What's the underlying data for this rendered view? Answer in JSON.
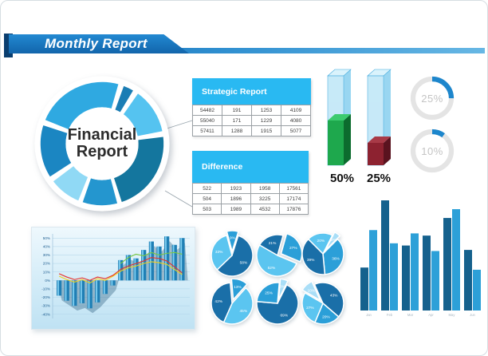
{
  "header": {
    "title": "Monthly Report"
  },
  "tables": [
    {
      "title": "Strategic Report",
      "rows": [
        [
          "54482",
          "191",
          "1253",
          "4109"
        ],
        [
          "55040",
          "171",
          "1229",
          "4080"
        ],
        [
          "57411",
          "1288",
          "1915",
          "5077"
        ]
      ]
    },
    {
      "title": "Difference",
      "rows": [
        [
          "522",
          "1923",
          "1958",
          "17561"
        ],
        [
          "504",
          "1896",
          "3225",
          "17174"
        ],
        [
          "503",
          "1989",
          "4532",
          "17876"
        ]
      ]
    }
  ],
  "chart_data": [
    {
      "id": "donut",
      "type": "pie",
      "center_lines": [
        "Financial",
        "Report"
      ],
      "slices": [
        {
          "start": 292,
          "end": 16,
          "color": "#2fa9e1"
        },
        {
          "start": 20,
          "end": 31,
          "color": "#1b7db4"
        },
        {
          "start": 35,
          "end": 79,
          "color": "#55c3f0"
        },
        {
          "start": 83,
          "end": 162,
          "color": "#14769e"
        },
        {
          "start": 165,
          "end": 199,
          "color": "#2496cf"
        },
        {
          "start": 202,
          "end": 233,
          "color": "#90d9f5"
        },
        {
          "start": 237,
          "end": 288,
          "color": "#1b86c2"
        }
      ]
    },
    {
      "id": "columns3d",
      "type": "bar",
      "labels": [
        "50%",
        "25%"
      ],
      "values": [
        50,
        25
      ],
      "colors": [
        {
          "front": "#1ea84d",
          "side": "#0c6c2e",
          "top": "#3bcb6e"
        },
        {
          "front": "#8d2230",
          "side": "#5a131f",
          "top": "#a83a47"
        }
      ],
      "glass": {
        "front": "#b8e4f7",
        "side": "#8ed2ef",
        "top": "#daf3fc",
        "stroke": "#3fa9dd"
      }
    },
    {
      "id": "rings",
      "type": "progress",
      "labels": [
        "25%",
        "10%"
      ],
      "values": [
        25,
        10
      ],
      "arc_color": "#1d86cc",
      "track_color": "#e4e4e4",
      "text_color": "#c4c4c4"
    },
    {
      "id": "combo",
      "type": "bar-line-combo",
      "x": [
        1,
        2,
        3,
        4,
        5,
        6,
        7,
        8,
        9,
        10,
        11,
        12,
        13,
        14,
        15,
        16,
        17
      ],
      "bars": [
        -18,
        -24,
        -30,
        -27,
        -33,
        -26,
        -16,
        -6,
        24,
        30,
        26,
        36,
        46,
        40,
        52,
        42,
        50
      ],
      "bar_color": "#1f7fb5",
      "bar_highlight": "#7fd0f2",
      "lines": [
        {
          "name": "yellow-line",
          "color": "#f2cf1d",
          "values": [
            5,
            1,
            -2,
            1,
            -3,
            2,
            0,
            5,
            11,
            15,
            17,
            20,
            22,
            21,
            19,
            13,
            7
          ]
        },
        {
          "name": "red-line",
          "color": "#e63129",
          "values": [
            8,
            4,
            1,
            3,
            0,
            4,
            2,
            6,
            13,
            17,
            20,
            23,
            27,
            26,
            23,
            16,
            9
          ]
        },
        {
          "name": "green-line",
          "color": "#7ac943",
          "values": [
            null,
            null,
            null,
            null,
            null,
            null,
            null,
            null,
            20,
            27,
            31,
            29,
            33,
            30,
            32,
            33,
            31
          ]
        }
      ],
      "y_ticks": [
        {
          "label": "50%",
          "v": 50
        },
        {
          "label": "40%",
          "v": 40
        },
        {
          "label": "30%",
          "v": 30
        },
        {
          "label": "20%",
          "v": 20
        },
        {
          "label": "10%",
          "v": 10
        },
        {
          "label": "0%",
          "v": 0
        },
        {
          "label": "-10%",
          "v": -10
        },
        {
          "label": "-20%",
          "v": -20
        },
        {
          "label": "-30%",
          "v": -30
        },
        {
          "label": "-40%",
          "v": -40
        }
      ],
      "ylim": [
        -45,
        55
      ],
      "grid": true,
      "legend": "none"
    },
    {
      "id": "mini-pies",
      "type": "pie",
      "palette": {
        "dark": "#1a6fa8",
        "mid": "#2b9fd8",
        "light": "#5bc5f0",
        "pale": "#a9def7"
      },
      "pies": [
        {
          "rotate": -15,
          "slices": [
            {
              "value": 9,
              "label": "9%",
              "color": "mid",
              "exploded": true
            },
            {
              "value": 58,
              "label": "58%",
              "color": "dark"
            },
            {
              "value": 33,
              "label": "33%",
              "color": "light"
            }
          ]
        },
        {
          "rotate": -60,
          "slices": [
            {
              "value": 21,
              "label": "21%",
              "color": "dark"
            },
            {
              "value": 27,
              "label": "27%",
              "color": "mid",
              "exploded": true
            },
            {
              "value": 52,
              "label": "52%",
              "color": "light"
            }
          ]
        },
        {
          "rotate": -45,
          "slices": [
            {
              "value": 20,
              "label": "20%",
              "color": "light"
            },
            {
              "value": 5,
              "label": "5%",
              "color": "pale",
              "exploded": true
            },
            {
              "value": 36,
              "label": "36%",
              "color": "mid"
            },
            {
              "value": 39,
              "label": "39%",
              "color": "dark"
            }
          ]
        },
        {
          "rotate": -5,
          "slices": [
            {
              "value": 13,
              "label": "13%",
              "color": "mid",
              "exploded": true
            },
            {
              "value": 45,
              "label": "45%",
              "color": "light"
            },
            {
              "value": 42,
              "label": "42%",
              "color": "dark"
            }
          ]
        },
        {
          "rotate": 5,
          "slices": [
            {
              "value": 6,
              "label": "6%",
              "color": "pale",
              "exploded": true
            },
            {
              "value": 69,
              "label": "69%",
              "color": "dark"
            },
            {
              "value": 25,
              "label": "25%",
              "color": "mid"
            }
          ]
        },
        {
          "rotate": -60,
          "slices": [
            {
              "value": 10,
              "label": "10%",
              "color": "pale",
              "exploded": true
            },
            {
              "value": 43,
              "label": "43%",
              "color": "dark"
            },
            {
              "value": 20,
              "label": "20%",
              "color": "mid"
            },
            {
              "value": 27,
              "label": "27%",
              "color": "light"
            }
          ]
        }
      ]
    },
    {
      "id": "grouped-bars",
      "type": "bar",
      "categories": [
        "Jan",
        "Feb",
        "Mar",
        "Apr",
        "May",
        "Jun"
      ],
      "series": [
        {
          "name": "series-dark",
          "color": "#15618d",
          "values": [
            39,
            100,
            59,
            68,
            84,
            55
          ]
        },
        {
          "name": "series-light",
          "color": "#2da0d8",
          "values": [
            73,
            61,
            70,
            54,
            92,
            37
          ]
        }
      ],
      "ylim": [
        0,
        100
      ],
      "legend": "none"
    }
  ]
}
